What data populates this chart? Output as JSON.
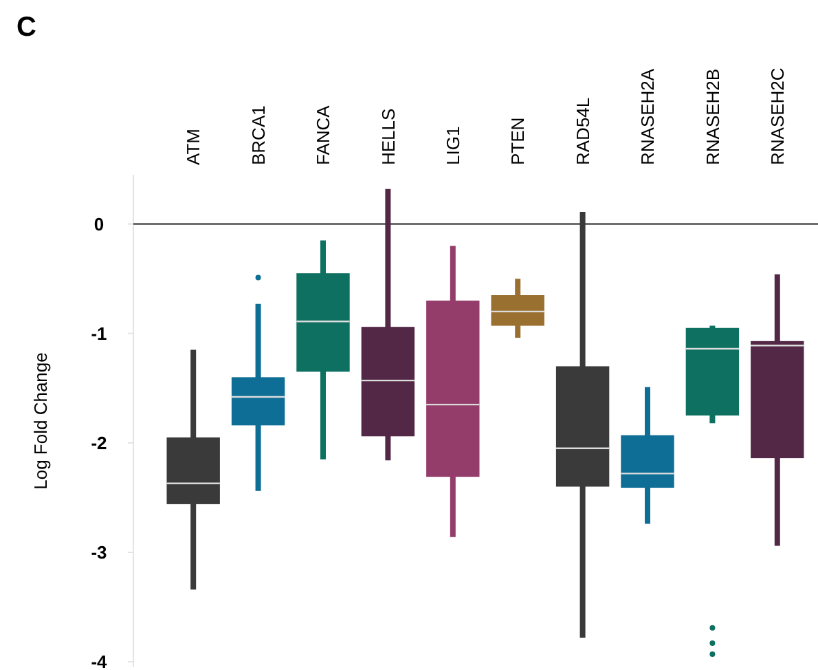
{
  "chart_data": {
    "type": "box",
    "title": "C",
    "ylabel": "Log Fold Change",
    "categories": [
      "ATM",
      "BRCA1",
      "FANCA",
      "HELLS",
      "LIG1",
      "PTEN",
      "RAD54L",
      "RNASEH2A",
      "RNASEH2B",
      "RNASEH2C"
    ],
    "colors": [
      "#3a3a3a",
      "#0e6e96",
      "#0d7060",
      "#532846",
      "#953d6a",
      "#9a7030",
      "#3a3a3a",
      "#0e6e96",
      "#0d7060",
      "#532846"
    ],
    "boxes": [
      {
        "low": -3.34,
        "q1": -2.56,
        "median": -2.37,
        "q3": -1.95,
        "high": -1.15
      },
      {
        "low": -2.44,
        "q1": -1.84,
        "median": -1.58,
        "q3": -1.4,
        "high": -0.73,
        "outliers": [
          -0.49
        ]
      },
      {
        "low": -2.15,
        "q1": -1.35,
        "median": -0.89,
        "q3": -0.45,
        "high": -0.15
      },
      {
        "low": -2.16,
        "q1": -1.94,
        "median": -1.43,
        "q3": -0.94,
        "high": 0.32
      },
      {
        "low": -2.86,
        "q1": -2.31,
        "median": -1.65,
        "q3": -0.7,
        "high": -0.2
      },
      {
        "low": -1.04,
        "q1": -0.93,
        "median": -0.8,
        "q3": -0.65,
        "high": -0.5
      },
      {
        "low": -3.78,
        "q1": -2.4,
        "median": -2.05,
        "q3": -1.3,
        "high": 0.11
      },
      {
        "low": -2.74,
        "q1": -2.41,
        "median": -2.28,
        "q3": -1.93,
        "high": -1.49
      },
      {
        "low": -1.82,
        "q1": -1.75,
        "median": -1.14,
        "q3": -0.95,
        "high": -0.93,
        "outliers": [
          -3.69,
          -3.83,
          -3.93
        ]
      },
      {
        "low": -2.94,
        "q1": -2.14,
        "median": -1.11,
        "q3": -1.07,
        "high": -0.46
      }
    ],
    "ylim": [
      -4.05,
      0.45
    ],
    "yticks": [
      0,
      -1,
      -2,
      -3,
      -4
    ],
    "ref_lines": [
      {
        "axis": "y",
        "value": 0,
        "color": "#6e6e6e"
      }
    ]
  }
}
